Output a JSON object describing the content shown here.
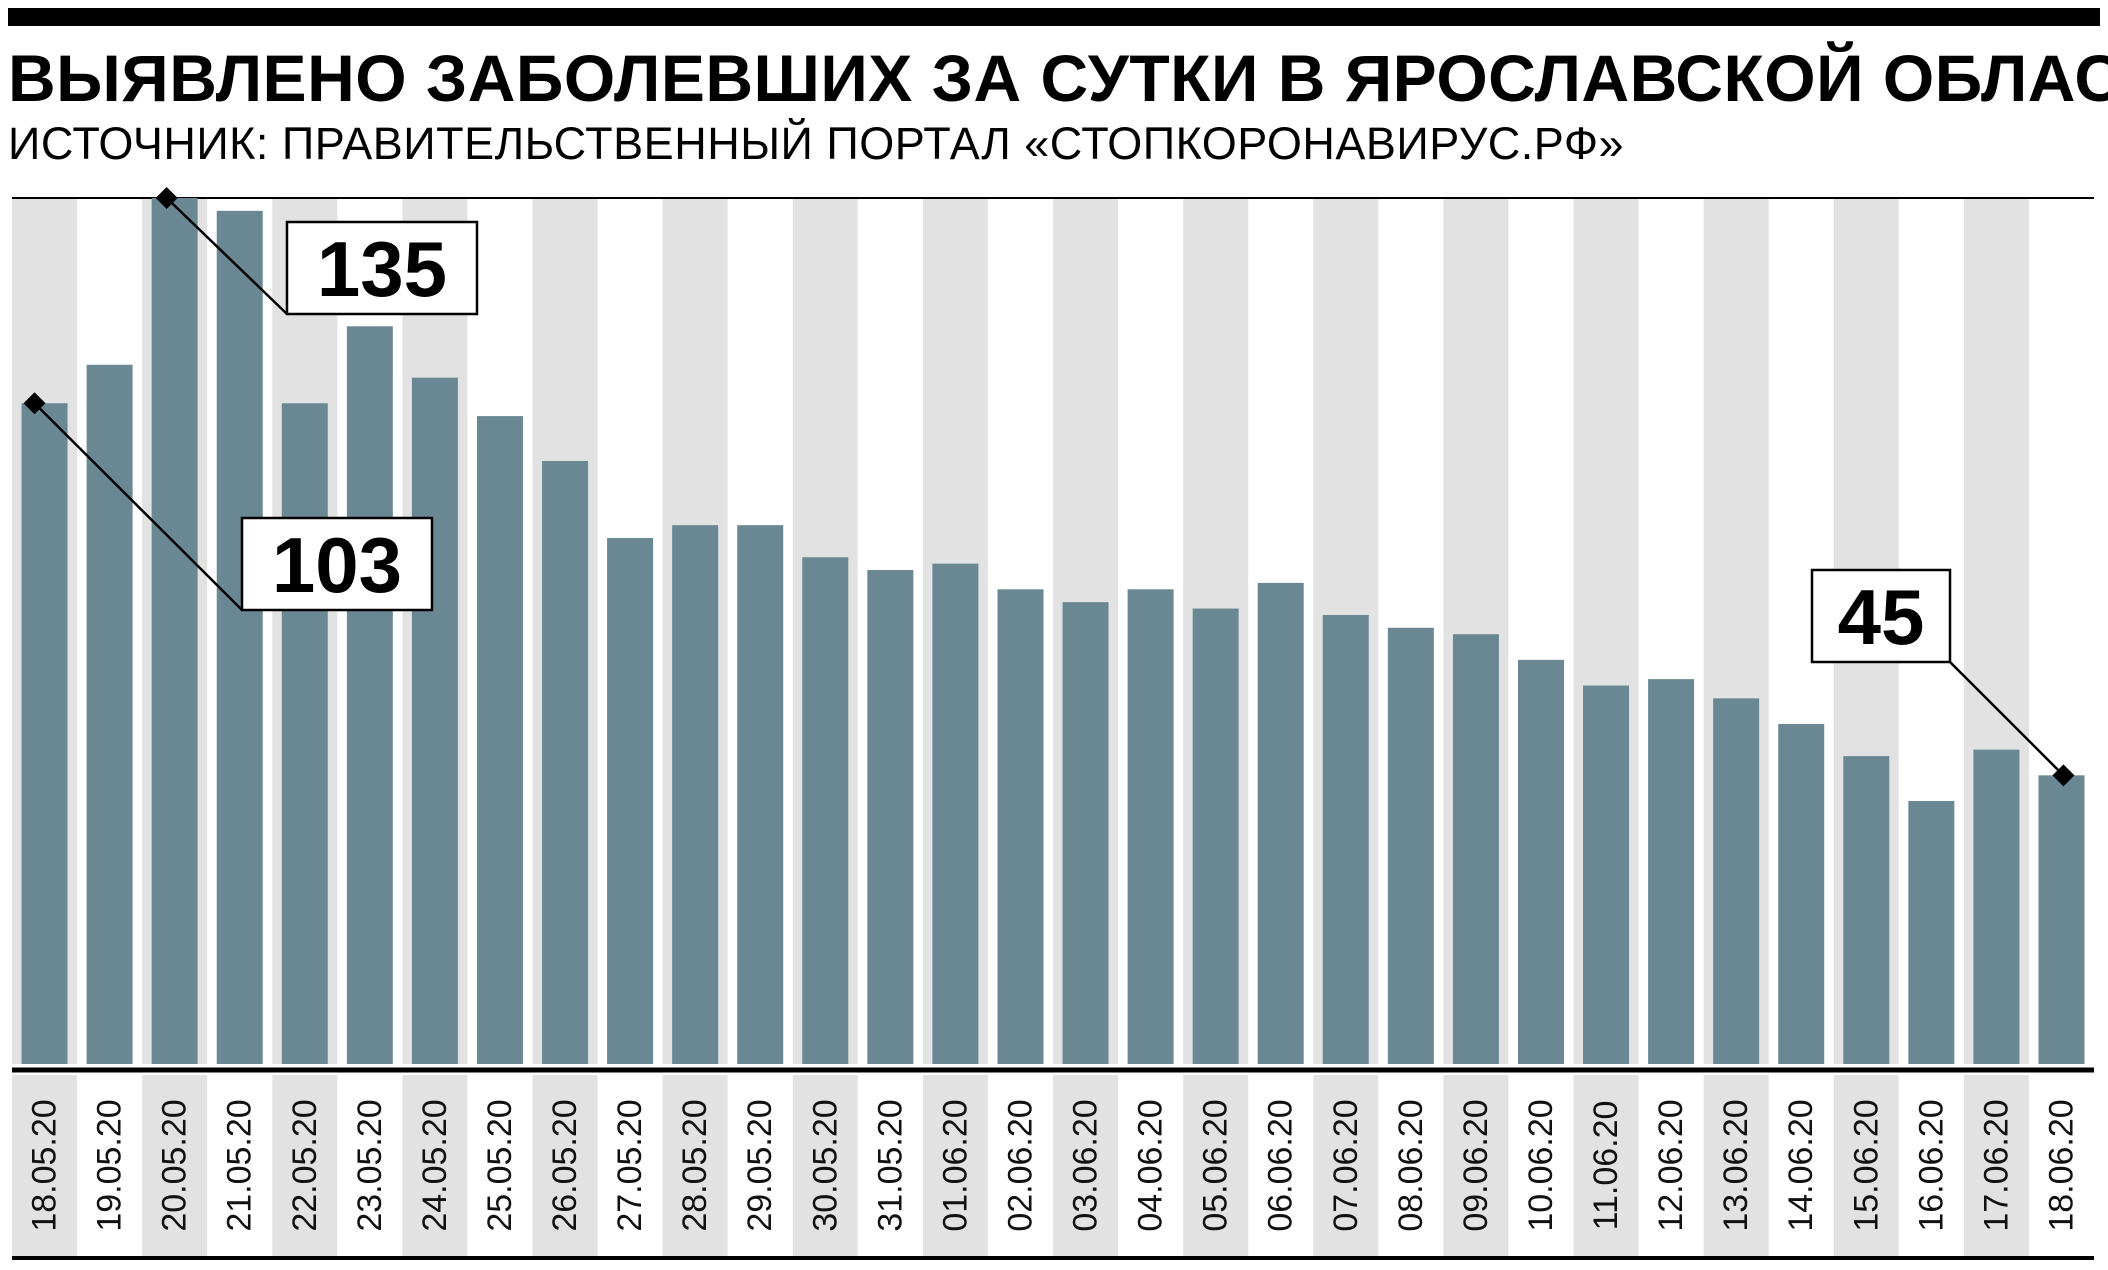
{
  "title": {
    "prefix": "ВЫЯВЛЕНО ЗАБОЛЕВШИХ ЗА СУТКИ В ",
    "region": "ЯРОСЛАВСКОЙ ОБЛАСТИ"
  },
  "subtitle": "ИСТОЧНИК: ПРАВИТЕЛЬСТВЕННЫЙ ПОРТАЛ «СТОПКОРОНАВИРУС.РФ»",
  "colors": {
    "bar": "#6a8893",
    "band": "#e2e2e2",
    "axis": "#000000"
  },
  "chart_data": {
    "type": "bar",
    "title": "ВЫЯВЛЕНО ЗАБОЛЕВШИХ ЗА СУТКИ В ЯРОСЛАВСКОЙ ОБЛАСТИ",
    "xlabel": "",
    "ylabel": "",
    "ylim": [
      0,
      135
    ],
    "grid": false,
    "legend": "none",
    "categories": [
      "18.05.20",
      "19.05.20",
      "20.05.20",
      "21.05.20",
      "22.05.20",
      "23.05.20",
      "24.05.20",
      "25.05.20",
      "26.05.20",
      "27.05.20",
      "28.05.20",
      "29.05.20",
      "30.05.20",
      "31.05.20",
      "01.06.20",
      "02.06.20",
      "03.06.20",
      "04.06.20",
      "05.06.20",
      "06.06.20",
      "07.06.20",
      "08.06.20",
      "09.06.20",
      "10.06.20",
      "11.06.20",
      "12.06.20",
      "13.06.20",
      "14.06.20",
      "15.06.20",
      "16.06.20",
      "17.06.20",
      "18.06.20"
    ],
    "values": [
      103,
      109,
      135,
      133,
      103,
      115,
      107,
      101,
      94,
      82,
      84,
      84,
      79,
      77,
      78,
      74,
      72,
      74,
      71,
      75,
      70,
      68,
      67,
      63,
      59,
      60,
      57,
      53,
      48,
      41,
      49,
      45
    ],
    "annotations": [
      {
        "category": "18.05.20",
        "label": "103"
      },
      {
        "category": "20.05.20",
        "label": "135"
      },
      {
        "category": "18.06.20",
        "label": "45"
      }
    ]
  }
}
